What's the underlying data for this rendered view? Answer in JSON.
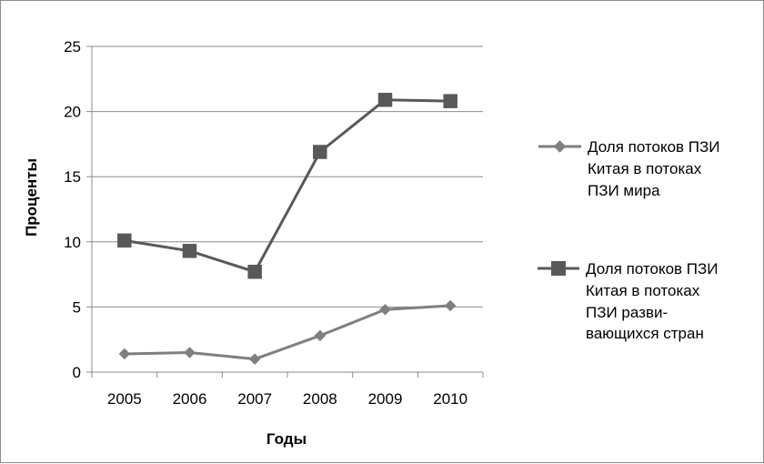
{
  "chart_data": {
    "type": "line",
    "xlabel": "Годы",
    "ylabel": "Проценты",
    "x": [
      "2005",
      "2006",
      "2007",
      "2008",
      "2009",
      "2010"
    ],
    "ylim": [
      0,
      25
    ],
    "yticks": [
      "0",
      "5",
      "10",
      "15",
      "20",
      "25"
    ],
    "grid": true,
    "legend_position": "right",
    "series": [
      {
        "name": "Доля потоков ПЗИ Китая в потоках ПЗИ мира",
        "legend_lines": [
          "Доля потоков ПЗИ",
          "Китая в потоках",
          "ПЗИ мира"
        ],
        "marker": "diamond",
        "color": "#7f7f7f",
        "values": [
          1.4,
          1.5,
          1.0,
          2.8,
          4.8,
          5.1
        ]
      },
      {
        "name": "Доля потоков ПЗИ Китая в потоках ПЗИ развивающихся стран",
        "legend_lines": [
          "Доля потоков ПЗИ",
          "Китая в потоках",
          "ПЗИ разви-",
          "вающихся стран"
        ],
        "marker": "square",
        "color": "#595959",
        "values": [
          10.1,
          9.3,
          7.7,
          16.9,
          20.9,
          20.8
        ]
      }
    ]
  }
}
